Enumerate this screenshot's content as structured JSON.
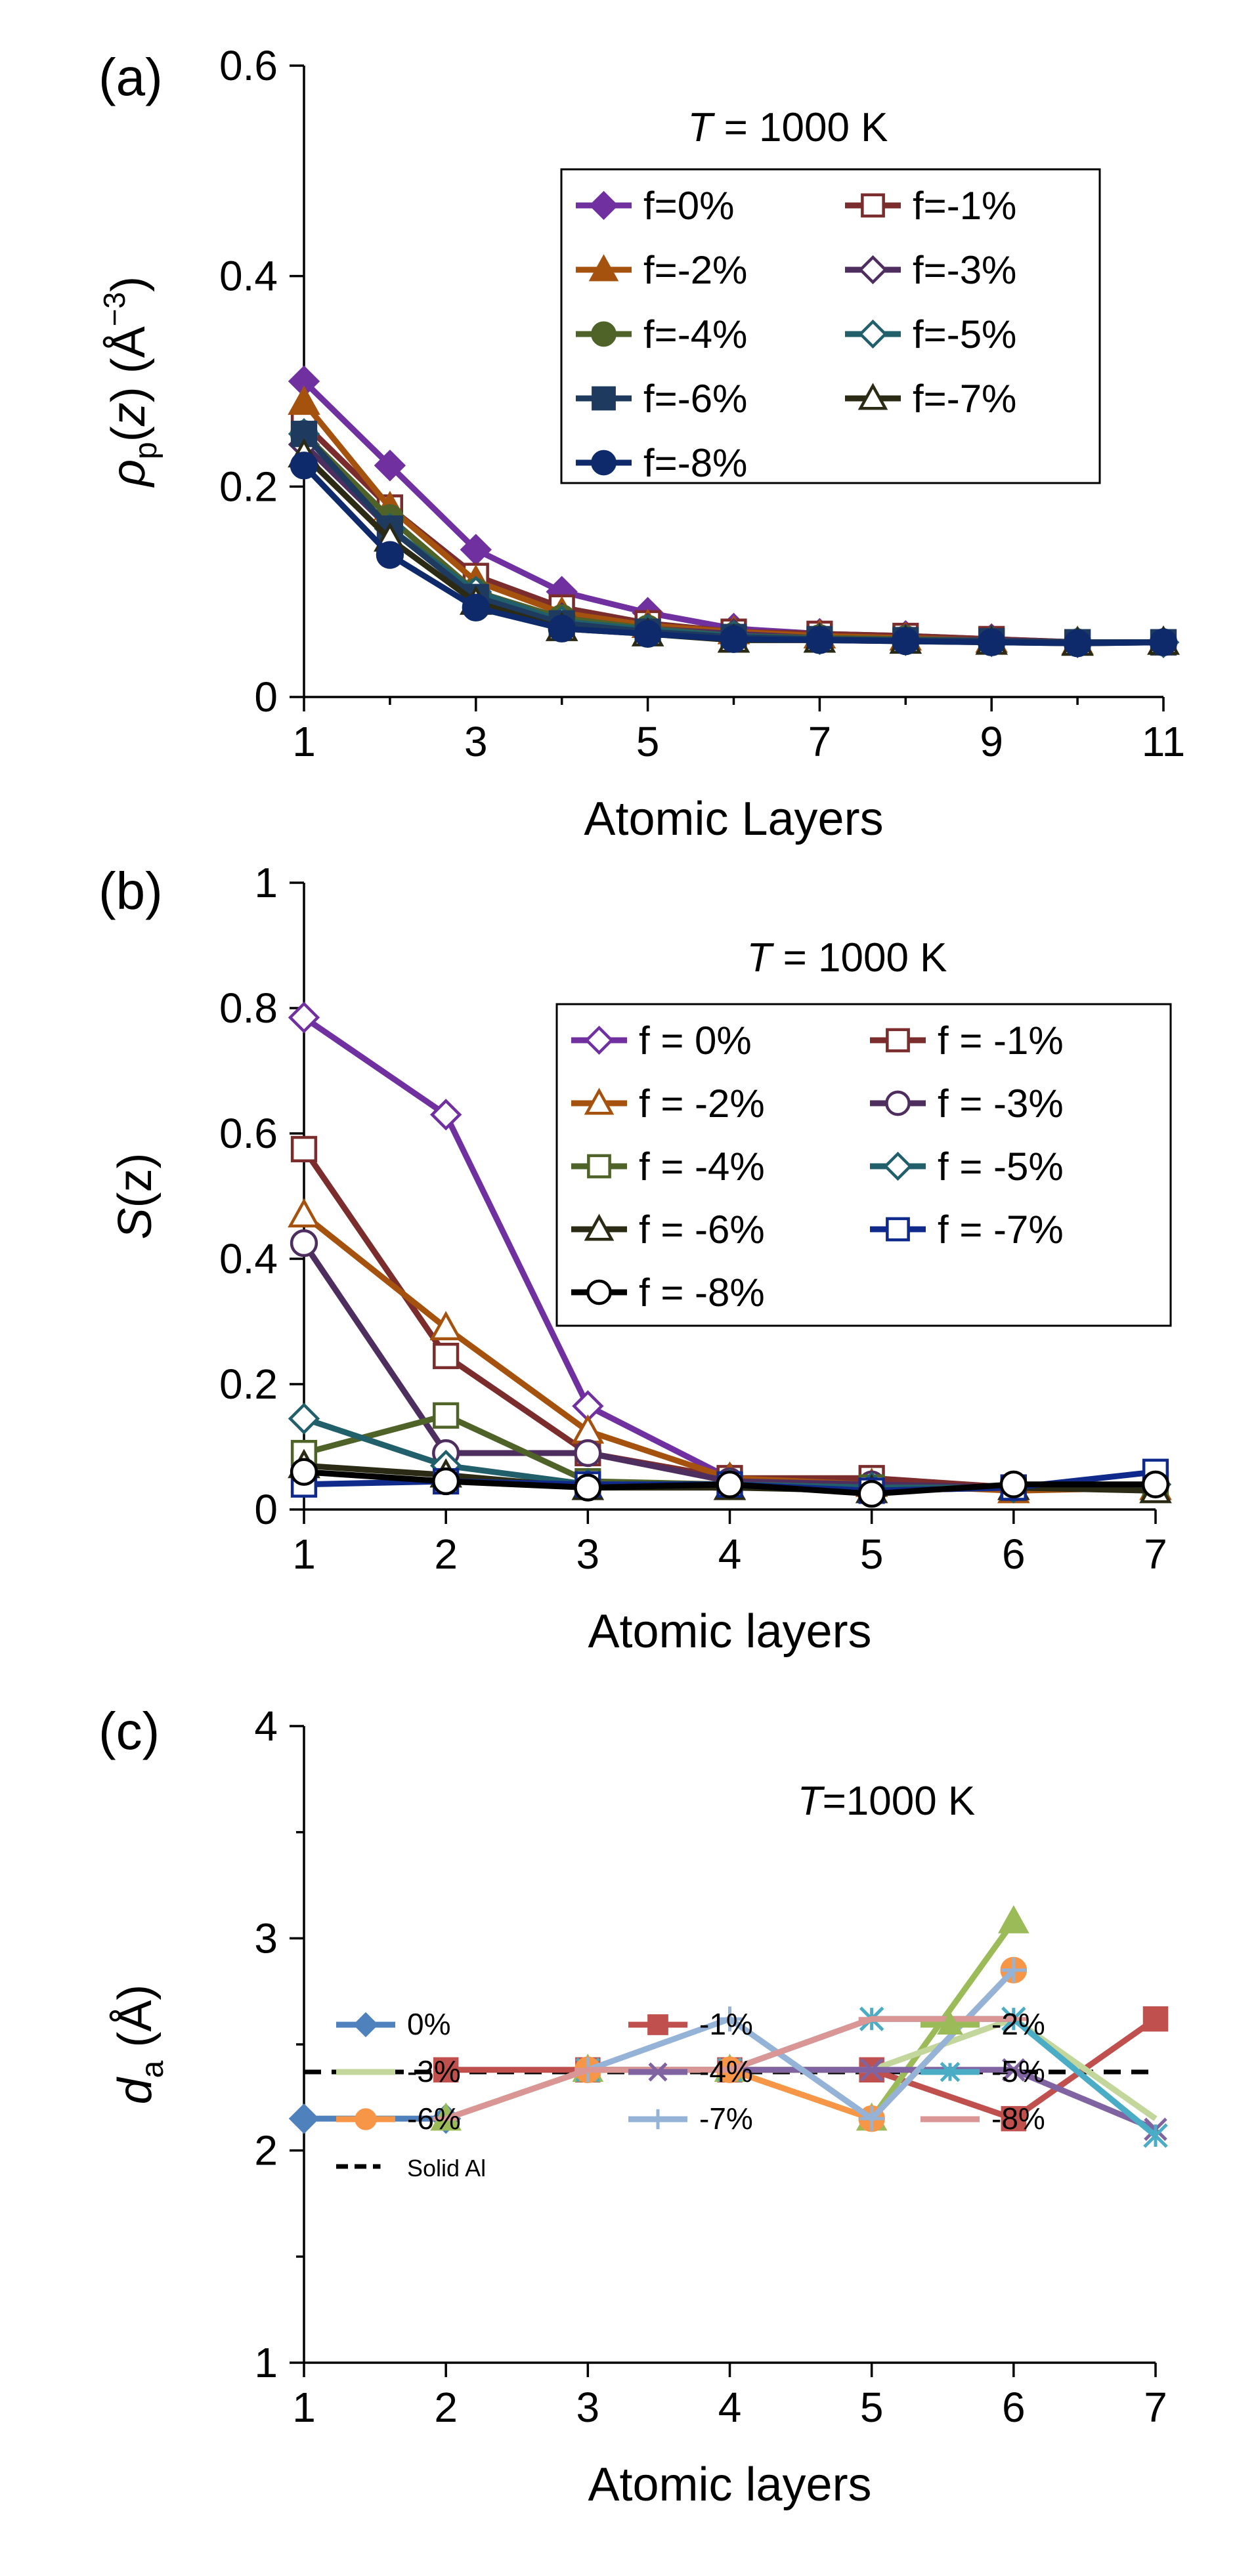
{
  "chart_data": [
    {
      "panel_label": "(a)",
      "type": "line",
      "annotation": {
        "italic": "T",
        "rest": " = 1000 K"
      },
      "ylabel": {
        "base": "ρ",
        "sub": "p",
        "mid": "(",
        "var": "z",
        "end": ") (Å",
        "sup": "−3",
        "close": ")"
      },
      "xlabel": "Atomic Layers",
      "xlim": [
        1,
        11
      ],
      "ylim": [
        0,
        0.6
      ],
      "xticks": [
        "1",
        "3",
        "5",
        "7",
        "9",
        "11"
      ],
      "yticks": [
        "0",
        "0.2",
        "0.4",
        "0.6"
      ],
      "x": [
        1,
        2,
        3,
        4,
        5,
        6,
        7,
        8,
        9,
        10,
        11
      ],
      "series": [
        {
          "name": "f=0%",
          "color": "#7030a0",
          "marker": "diamond",
          "filled": true,
          "values": [
            0.3,
            0.22,
            0.14,
            0.1,
            0.08,
            0.065,
            0.06,
            0.058,
            0.055,
            0.052,
            0.052
          ]
        },
        {
          "name": "f=-1%",
          "color": "#7b2c2c",
          "marker": "square",
          "filled": false,
          "values": [
            0.26,
            0.18,
            0.115,
            0.085,
            0.07,
            0.062,
            0.06,
            0.058,
            0.055,
            0.052,
            0.052
          ]
        },
        {
          "name": "f=-2%",
          "color": "#a5520f",
          "marker": "triangle",
          "filled": true,
          "values": [
            0.28,
            0.18,
            0.11,
            0.08,
            0.068,
            0.062,
            0.058,
            0.056,
            0.054,
            0.052,
            0.052
          ]
        },
        {
          "name": "f=-3%",
          "color": "#4e2e5f",
          "marker": "diamond",
          "filled": false,
          "values": [
            0.24,
            0.16,
            0.1,
            0.075,
            0.065,
            0.06,
            0.056,
            0.055,
            0.054,
            0.052,
            0.052
          ]
        },
        {
          "name": "f=-4%",
          "color": "#4f6228",
          "marker": "circle",
          "filled": true,
          "values": [
            0.25,
            0.17,
            0.1,
            0.075,
            0.065,
            0.058,
            0.056,
            0.055,
            0.053,
            0.052,
            0.052
          ]
        },
        {
          "name": "f=-5%",
          "color": "#215f6b",
          "marker": "diamond",
          "filled": false,
          "values": [
            0.25,
            0.16,
            0.1,
            0.072,
            0.064,
            0.058,
            0.055,
            0.054,
            0.053,
            0.052,
            0.052
          ]
        },
        {
          "name": "f=-6%",
          "color": "#1f3a5f",
          "marker": "square",
          "filled": true,
          "values": [
            0.25,
            0.16,
            0.095,
            0.07,
            0.062,
            0.057,
            0.055,
            0.054,
            0.053,
            0.052,
            0.052
          ]
        },
        {
          "name": "f=-7%",
          "color": "#2b2a14",
          "marker": "triangle",
          "filled": false,
          "values": [
            0.23,
            0.15,
            0.09,
            0.065,
            0.06,
            0.054,
            0.054,
            0.053,
            0.052,
            0.051,
            0.052
          ]
        },
        {
          "name": "f=-8%",
          "color": "#0f2a6b",
          "marker": "circle",
          "filled": true,
          "values": [
            0.22,
            0.135,
            0.085,
            0.065,
            0.06,
            0.055,
            0.054,
            0.053,
            0.052,
            0.051,
            0.052
          ]
        }
      ]
    },
    {
      "panel_label": "(b)",
      "type": "line",
      "annotation": {
        "italic": "T",
        "rest": " = 1000 K"
      },
      "ylabel": {
        "var": "S",
        "end": "(z)"
      },
      "xlabel": "Atomic layers",
      "xlim": [
        1,
        7
      ],
      "ylim": [
        0,
        1
      ],
      "xticks": [
        "1",
        "2",
        "3",
        "4",
        "5",
        "6",
        "7"
      ],
      "yticks": [
        "0",
        "0.2",
        "0.4",
        "0.6",
        "0.8",
        "1"
      ],
      "x": [
        1,
        2,
        3,
        4,
        5,
        6,
        7
      ],
      "series": [
        {
          "name": "f = 0%",
          "color": "#7030a0",
          "marker": "diamond",
          "filled": false,
          "values": [
            0.785,
            0.63,
            0.165,
            0.05,
            0.04,
            0.035,
            0.04
          ]
        },
        {
          "name": "f = -1%",
          "color": "#7b2c2c",
          "marker": "square",
          "filled": false,
          "values": [
            0.575,
            0.245,
            0.09,
            0.05,
            0.05,
            0.035,
            0.04
          ]
        },
        {
          "name": "f = -2%",
          "color": "#a5520f",
          "marker": "triangle",
          "filled": false,
          "values": [
            0.47,
            0.29,
            0.125,
            0.05,
            0.04,
            0.03,
            0.035
          ]
        },
        {
          "name": "f = -3%",
          "color": "#4e2e5f",
          "marker": "circle",
          "filled": false,
          "values": [
            0.425,
            0.09,
            0.09,
            0.045,
            0.04,
            0.035,
            0.04
          ]
        },
        {
          "name": "f = -4%",
          "color": "#4f6228",
          "marker": "square",
          "filled": false,
          "values": [
            0.09,
            0.15,
            0.045,
            0.04,
            0.035,
            0.035,
            0.04
          ]
        },
        {
          "name": "f = -5%",
          "color": "#215f6b",
          "marker": "diamond",
          "filled": false,
          "values": [
            0.145,
            0.07,
            0.04,
            0.04,
            0.035,
            0.035,
            0.04
          ]
        },
        {
          "name": "f = -6%",
          "color": "#2b2a14",
          "marker": "triangle",
          "filled": false,
          "values": [
            0.07,
            0.055,
            0.035,
            0.035,
            0.03,
            0.035,
            0.03
          ]
        },
        {
          "name": "f = -7%",
          "color": "#0f2a8b",
          "marker": "square",
          "filled": false,
          "values": [
            0.04,
            0.045,
            0.04,
            0.04,
            0.03,
            0.035,
            0.06
          ]
        },
        {
          "name": "f = -8%",
          "color": "#000000",
          "marker": "circle",
          "filled": false,
          "values": [
            0.06,
            0.045,
            0.035,
            0.04,
            0.025,
            0.04,
            0.04
          ]
        }
      ]
    },
    {
      "panel_label": "(c)",
      "type": "line",
      "annotation": {
        "italic": "T",
        "rest": "=1000 K"
      },
      "ylabel": {
        "var": "d",
        "sub": "a",
        "end": " (Å)"
      },
      "xlabel": "Atomic layers",
      "xlim": [
        1,
        7
      ],
      "ylim": [
        1,
        4
      ],
      "xticks": [
        "1",
        "2",
        "3",
        "4",
        "5",
        "6",
        "7"
      ],
      "yticks": [
        "1",
        "2",
        "3",
        "4"
      ],
      "reference": {
        "name": "Solid Al",
        "value": 2.37,
        "color": "#000000"
      },
      "series": [
        {
          "name": "0%",
          "color": "#4f81bd",
          "marker": "diamond",
          "filled": true,
          "x": [
            1,
            2
          ],
          "values": [
            2.15,
            2.15
          ]
        },
        {
          "name": "-1%",
          "color": "#c0504d",
          "marker": "square",
          "filled": true,
          "x": [
            2,
            3,
            4,
            5,
            6,
            7
          ],
          "values": [
            2.38,
            2.38,
            2.38,
            2.38,
            2.15,
            2.62
          ]
        },
        {
          "name": "-2%",
          "color": "#9bbb59",
          "marker": "triangle",
          "filled": true,
          "x": [
            2,
            3,
            4,
            5,
            6
          ],
          "values": [
            2.15,
            2.38,
            2.38,
            2.15,
            3.08
          ]
        },
        {
          "name": "-3%",
          "color": "#c3d69b",
          "marker": "none",
          "filled": true,
          "x": [
            2,
            3,
            4,
            5,
            6,
            7
          ],
          "values": [
            2.15,
            2.38,
            2.38,
            2.38,
            2.62,
            2.15
          ]
        },
        {
          "name": "-4%",
          "color": "#8064a2",
          "marker": "x",
          "filled": true,
          "x": [
            3,
            4,
            5,
            6,
            7
          ],
          "values": [
            2.38,
            2.38,
            2.38,
            2.38,
            2.1
          ]
        },
        {
          "name": "-5%",
          "color": "#4bacc6",
          "marker": "asterisk",
          "filled": true,
          "x": [
            3,
            4,
            5,
            6,
            7
          ],
          "values": [
            2.38,
            2.38,
            2.62,
            2.62,
            2.07
          ]
        },
        {
          "name": "-6%",
          "color": "#f79646",
          "marker": "circle",
          "filled": true,
          "x": [
            3,
            4,
            5,
            6
          ],
          "values": [
            2.38,
            2.38,
            2.15,
            2.85
          ]
        },
        {
          "name": "-7%",
          "color": "#95b3d7",
          "marker": "plus",
          "filled": true,
          "x": [
            3,
            4,
            5,
            6
          ],
          "values": [
            2.38,
            2.62,
            2.15,
            2.85
          ]
        },
        {
          "name": "-8%",
          "color": "#d99694",
          "marker": "dash",
          "filled": true,
          "x": [
            2,
            3,
            4,
            5,
            6
          ],
          "values": [
            2.15,
            2.38,
            2.38,
            2.62,
            2.62
          ]
        }
      ]
    }
  ]
}
